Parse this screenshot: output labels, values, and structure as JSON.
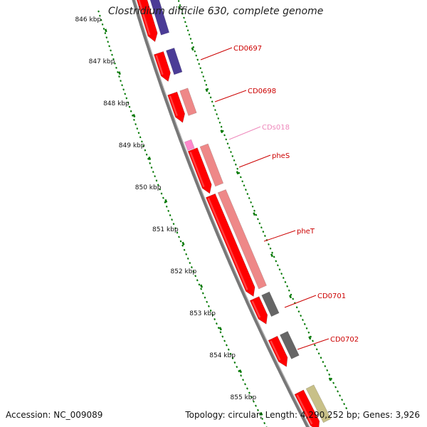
{
  "title": "Clostridium difficile 630, complete genome",
  "accession": "Accession: NC_009089",
  "summary": "Topology: circular; Length: 4,290,252 bp; Genes: 3,926",
  "ticks": [
    "846 kbp",
    "847 kbp",
    "848 kbp",
    "849 kbp",
    "850 kbp",
    "851 kbp",
    "852 kbp",
    "853 kbp",
    "854 kbp",
    "855 kbp"
  ],
  "genes": [
    "CD0697",
    "CD0698",
    "CDs018",
    "pheS",
    "pheT",
    "CD0701",
    "CD0702"
  ],
  "colors": {
    "cds": "#ff0000",
    "cds_dark": "#cc0000",
    "cog_purple": "#4b3c96",
    "cog_salmon": "#ee8888",
    "cog_grey": "#666666",
    "cog_olive": "#c8c088",
    "ncrna": "#ff88cc",
    "label_red": "#cc0000",
    "label_pink": "#ee88bb",
    "tick_green": "#007700",
    "backbone": "#777777"
  }
}
